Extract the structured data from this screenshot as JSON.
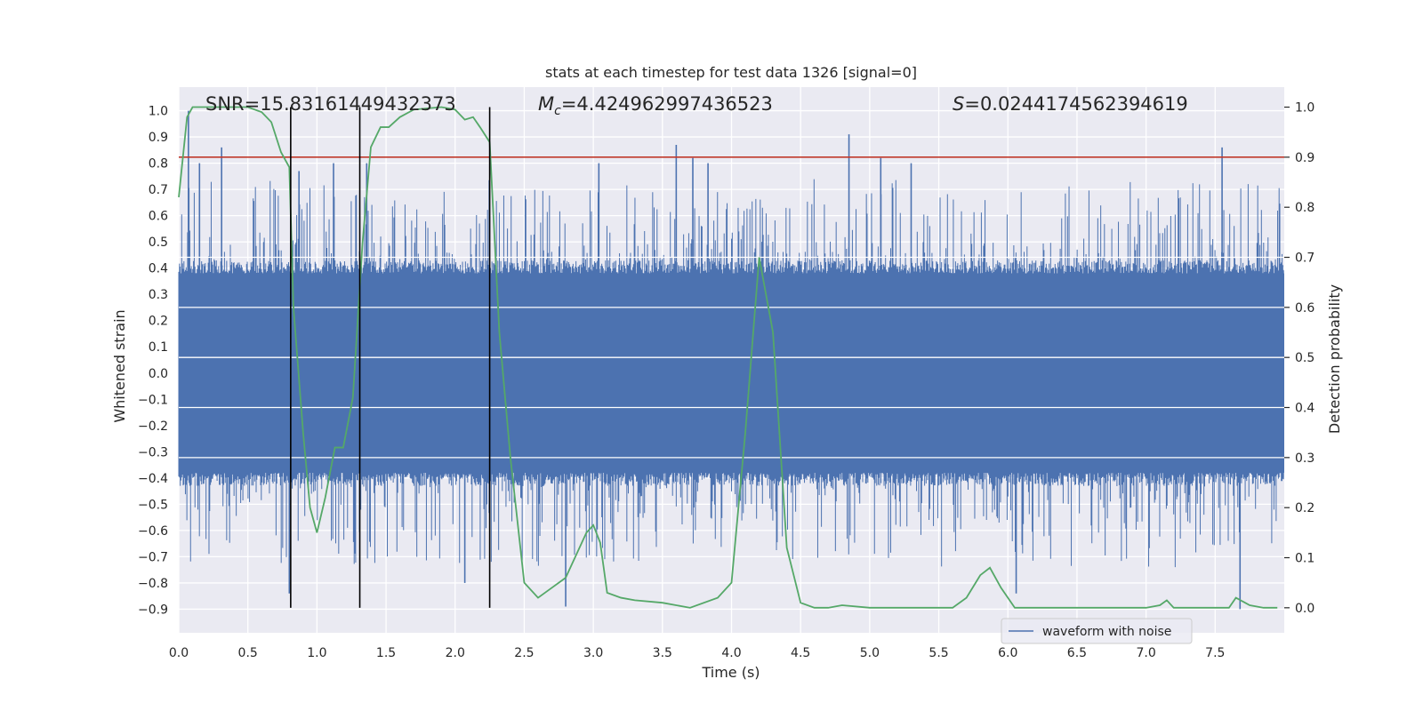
{
  "chart_data": {
    "type": "line",
    "title": "stats at each timestep for test data 1326 [signal=0]",
    "xlabel": "Time (s)",
    "ylabel": "Whitened strain",
    "y2label": "Detection probability",
    "xlim": [
      0.0,
      8.0
    ],
    "ylim": [
      -0.99,
      1.09
    ],
    "y2lim": [
      -0.05,
      1.04
    ],
    "xticks": [
      0.0,
      0.5,
      1.0,
      1.5,
      2.0,
      2.5,
      3.0,
      3.5,
      4.0,
      4.5,
      5.0,
      5.5,
      6.0,
      6.5,
      7.0,
      7.5
    ],
    "xtick_labels": [
      "0.0",
      "0.5",
      "1.0",
      "1.5",
      "2.0",
      "2.5",
      "3.0",
      "3.5",
      "4.0",
      "4.5",
      "5.0",
      "5.5",
      "6.0",
      "6.5",
      "7.0",
      "7.5"
    ],
    "yticks": [
      1.0,
      0.9,
      0.8,
      0.7,
      0.6,
      0.5,
      0.4,
      0.3,
      0.2,
      0.1,
      0.0,
      -0.1,
      -0.2,
      -0.3,
      -0.4,
      -0.5,
      -0.6,
      -0.7,
      -0.8,
      -0.9
    ],
    "ytick_labels": [
      "1.0",
      "0.9",
      "0.8",
      "0.7",
      "0.6",
      "0.5",
      "0.4",
      "0.3",
      "0.2",
      "0.1",
      "0.0",
      "−0.1",
      "−0.2",
      "−0.3",
      "−0.4",
      "−0.5",
      "−0.6",
      "−0.7",
      "−0.8",
      "−0.9"
    ],
    "y2ticks": [
      1.0,
      0.9,
      0.8,
      0.7,
      0.6,
      0.5,
      0.4,
      0.3,
      0.2,
      0.1,
      0.0
    ],
    "y2tick_labels": [
      "1.0",
      "0.9",
      "0.8",
      "0.7",
      "0.6",
      "0.5",
      "0.4",
      "0.3",
      "0.2",
      "0.1",
      "0.0"
    ],
    "annotations": {
      "snr": "SNR=15.83161449432373",
      "mc_symbol": "M",
      "mc_sub": "c",
      "mc_value": "=4.424962997436523",
      "s_symbol": "S",
      "s_value": "=0.0244174562394619"
    },
    "threshold": {
      "value": 0.9,
      "axis": "y2",
      "color": "#c0392b"
    },
    "vlines": [
      0.81,
      1.31,
      2.25
    ],
    "waveform": {
      "name": "waveform with noise",
      "color": "#4c72b0",
      "duration_s": 8.0,
      "band_lo": -0.38,
      "band_hi": 0.38,
      "peaks": [
        {
          "t": 0.07,
          "v": 1.0
        },
        {
          "t": 0.15,
          "v": 0.8
        },
        {
          "t": 0.31,
          "v": 0.86
        },
        {
          "t": 0.8,
          "v": -0.84
        },
        {
          "t": 0.87,
          "v": 0.77
        },
        {
          "t": 1.12,
          "v": 0.8
        },
        {
          "t": 1.36,
          "v": 0.8
        },
        {
          "t": 2.07,
          "v": -0.8
        },
        {
          "t": 2.8,
          "v": -0.89
        },
        {
          "t": 3.04,
          "v": 0.8
        },
        {
          "t": 3.6,
          "v": 0.87
        },
        {
          "t": 3.72,
          "v": 0.82
        },
        {
          "t": 3.83,
          "v": 0.8
        },
        {
          "t": 4.85,
          "v": 0.91
        },
        {
          "t": 5.08,
          "v": 0.82
        },
        {
          "t": 5.3,
          "v": 0.8
        },
        {
          "t": 6.06,
          "v": -0.84
        },
        {
          "t": 7.55,
          "v": 0.86
        },
        {
          "t": 7.68,
          "v": -0.9
        }
      ]
    },
    "probability": {
      "name": "Detection probability",
      "color": "#55a868",
      "x": [
        0.0,
        0.06,
        0.1,
        0.2,
        0.5,
        0.6,
        0.67,
        0.74,
        0.8,
        0.83,
        0.9,
        0.95,
        1.0,
        1.06,
        1.13,
        1.19,
        1.26,
        1.33,
        1.39,
        1.46,
        1.52,
        1.6,
        1.7,
        1.9,
        2.0,
        2.07,
        2.13,
        2.18,
        2.25,
        2.32,
        2.4,
        2.5,
        2.6,
        2.7,
        2.8,
        2.9,
        2.95,
        3.0,
        3.05,
        3.1,
        3.2,
        3.3,
        3.5,
        3.7,
        3.9,
        4.0,
        4.1,
        4.2,
        4.3,
        4.4,
        4.5,
        4.6,
        4.7,
        4.8,
        5.0,
        5.3,
        5.6,
        5.7,
        5.8,
        5.87,
        5.95,
        6.05,
        6.3,
        6.6,
        7.0,
        7.1,
        7.15,
        7.2,
        7.4,
        7.6,
        7.65,
        7.75,
        7.85,
        7.95
      ],
      "y": [
        0.82,
        0.98,
        1.0,
        1.0,
        1.0,
        0.99,
        0.97,
        0.91,
        0.88,
        0.6,
        0.35,
        0.2,
        0.15,
        0.22,
        0.32,
        0.32,
        0.42,
        0.73,
        0.92,
        0.96,
        0.96,
        0.98,
        0.995,
        1.0,
        0.995,
        0.975,
        0.98,
        0.96,
        0.93,
        0.55,
        0.3,
        0.05,
        0.02,
        0.04,
        0.06,
        0.12,
        0.15,
        0.165,
        0.13,
        0.03,
        0.02,
        0.015,
        0.01,
        0.0,
        0.02,
        0.05,
        0.35,
        0.7,
        0.55,
        0.12,
        0.01,
        0.0,
        0.0,
        0.005,
        0.0,
        0.0,
        0.0,
        0.02,
        0.065,
        0.08,
        0.04,
        0.0,
        0.0,
        0.0,
        0.0,
        0.005,
        0.015,
        0.0,
        0.0,
        0.0,
        0.02,
        0.005,
        0.0,
        0.0
      ]
    },
    "legend": {
      "position": "lower-right",
      "entries": [
        "waveform with noise"
      ]
    },
    "grid": true
  }
}
